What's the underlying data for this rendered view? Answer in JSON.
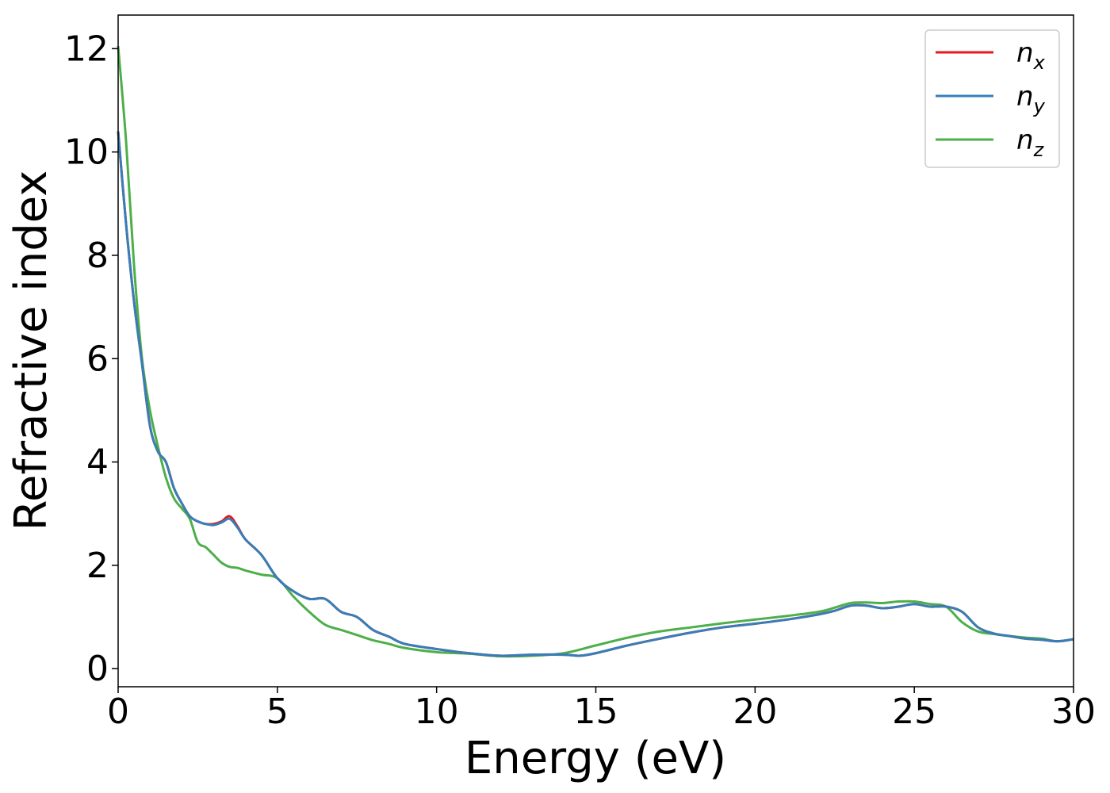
{
  "chart_data": {
    "type": "line",
    "title": "",
    "xlabel": "Energy (eV)",
    "ylabel": "Refractive index",
    "xlim": [
      0,
      30
    ],
    "ylim": [
      -0.35,
      12.65
    ],
    "xticks": [
      0,
      5,
      10,
      15,
      20,
      25,
      30
    ],
    "yticks": [
      0,
      2,
      4,
      6,
      8,
      10,
      12
    ],
    "grid": false,
    "legend_position": "top-right",
    "series": [
      {
        "name": "n",
        "subscript": "x",
        "color": "#e41a1c",
        "x": [
          0,
          0.25,
          0.5,
          0.75,
          1.0,
          1.25,
          1.5,
          1.75,
          2.0,
          2.25,
          2.5,
          2.75,
          3.0,
          3.25,
          3.5,
          3.75,
          4.0,
          4.5,
          5.0,
          5.5,
          6.0,
          6.5,
          7.0,
          7.5,
          8.0,
          8.5,
          9.0,
          10.0,
          11.0,
          12.0,
          13.0,
          14.0,
          14.5,
          15.0,
          16.0,
          17.0,
          18.0,
          19.0,
          20.0,
          21.0,
          22.0,
          22.5,
          23.0,
          23.5,
          24.0,
          24.5,
          25.0,
          25.5,
          26.0,
          26.5,
          27.0,
          27.5,
          28.0,
          28.5,
          29.0,
          29.5,
          30.0
        ],
        "y": [
          10.4,
          8.6,
          7.1,
          5.9,
          4.7,
          4.2,
          4.0,
          3.5,
          3.2,
          2.95,
          2.85,
          2.8,
          2.8,
          2.85,
          2.95,
          2.75,
          2.5,
          2.2,
          1.75,
          1.5,
          1.35,
          1.35,
          1.1,
          1.0,
          0.75,
          0.62,
          0.48,
          0.38,
          0.3,
          0.25,
          0.27,
          0.27,
          0.25,
          0.3,
          0.45,
          0.58,
          0.7,
          0.8,
          0.87,
          0.95,
          1.05,
          1.12,
          1.22,
          1.22,
          1.17,
          1.2,
          1.25,
          1.2,
          1.2,
          1.1,
          0.8,
          0.68,
          0.63,
          0.58,
          0.56,
          0.53,
          0.57
        ]
      },
      {
        "name": "n",
        "subscript": "y",
        "color": "#377eb8",
        "x": [
          0,
          0.25,
          0.5,
          0.75,
          1.0,
          1.25,
          1.5,
          1.75,
          2.0,
          2.25,
          2.5,
          2.75,
          3.0,
          3.25,
          3.5,
          3.75,
          4.0,
          4.5,
          5.0,
          5.5,
          6.0,
          6.5,
          7.0,
          7.5,
          8.0,
          8.5,
          9.0,
          10.0,
          11.0,
          12.0,
          13.0,
          14.0,
          14.5,
          15.0,
          16.0,
          17.0,
          18.0,
          19.0,
          20.0,
          21.0,
          22.0,
          22.5,
          23.0,
          23.5,
          24.0,
          24.5,
          25.0,
          25.5,
          26.0,
          26.5,
          27.0,
          27.5,
          28.0,
          28.5,
          29.0,
          29.5,
          30.0
        ],
        "y": [
          10.4,
          8.6,
          7.1,
          5.9,
          4.7,
          4.2,
          4.0,
          3.5,
          3.2,
          2.95,
          2.85,
          2.8,
          2.78,
          2.83,
          2.9,
          2.73,
          2.5,
          2.2,
          1.75,
          1.5,
          1.35,
          1.35,
          1.1,
          1.0,
          0.75,
          0.62,
          0.48,
          0.38,
          0.3,
          0.25,
          0.27,
          0.27,
          0.25,
          0.3,
          0.45,
          0.58,
          0.7,
          0.8,
          0.87,
          0.95,
          1.05,
          1.12,
          1.22,
          1.22,
          1.17,
          1.2,
          1.25,
          1.2,
          1.2,
          1.1,
          0.8,
          0.68,
          0.63,
          0.58,
          0.56,
          0.53,
          0.57
        ]
      },
      {
        "name": "n",
        "subscript": "z",
        "color": "#4daf4a",
        "x": [
          0,
          0.25,
          0.5,
          0.75,
          1.0,
          1.25,
          1.5,
          1.75,
          2.0,
          2.25,
          2.5,
          2.75,
          3.0,
          3.25,
          3.5,
          3.75,
          4.0,
          4.5,
          5.0,
          5.5,
          6.0,
          6.5,
          7.0,
          7.5,
          8.0,
          8.5,
          9.0,
          10.0,
          11.0,
          12.0,
          13.0,
          14.0,
          15.0,
          16.0,
          17.0,
          18.0,
          19.0,
          20.0,
          21.0,
          22.0,
          22.5,
          23.0,
          23.5,
          24.0,
          24.5,
          25.0,
          25.5,
          26.0,
          26.5,
          27.0,
          27.5,
          28.0,
          28.5,
          29.0,
          29.5,
          30.0
        ],
        "y": [
          12.05,
          10.2,
          7.8,
          6.0,
          5.0,
          4.3,
          3.7,
          3.3,
          3.1,
          2.9,
          2.45,
          2.35,
          2.2,
          2.05,
          1.97,
          1.95,
          1.9,
          1.82,
          1.75,
          1.4,
          1.1,
          0.85,
          0.75,
          0.65,
          0.55,
          0.48,
          0.4,
          0.32,
          0.29,
          0.24,
          0.25,
          0.3,
          0.45,
          0.6,
          0.72,
          0.8,
          0.88,
          0.95,
          1.02,
          1.1,
          1.18,
          1.27,
          1.28,
          1.27,
          1.3,
          1.3,
          1.25,
          1.2,
          0.9,
          0.72,
          0.67,
          0.63,
          0.6,
          0.58,
          0.53,
          0.57
        ]
      }
    ]
  }
}
